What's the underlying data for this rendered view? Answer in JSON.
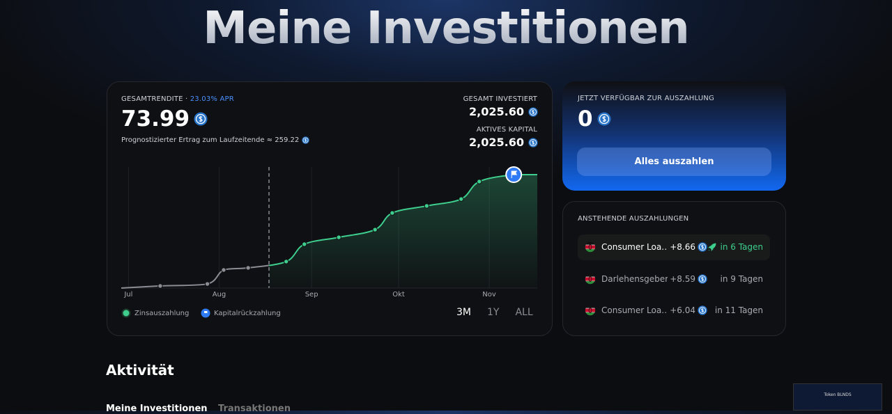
{
  "header": {
    "title": "Meine Investitionen"
  },
  "summary": {
    "label": "GESAMTRENDITE ·",
    "apr": "23.03% APR",
    "total": "73.99",
    "forecast": "Prognostizierter Ertrag zum Laufzeitende ≈ 259.22",
    "invested_label": "GESAMT INVESTIERT",
    "invested": "2,025.60",
    "capital_label": "AKTIVES KAPITAL",
    "capital": "2,025.60"
  },
  "chart_data": {
    "type": "line",
    "x": [
      -0.08,
      0.35,
      0.87,
      1.05,
      1.32,
      1.74,
      1.94,
      2.32,
      2.72,
      2.91,
      3.29,
      3.67,
      3.87,
      4.25,
      4.51
    ],
    "values": [
      0,
      1.4,
      2.7,
      11.8,
      13.2,
      17.3,
      28.6,
      33.1,
      38.1,
      49.0,
      53.6,
      58.1,
      69.5,
      74.0,
      74.0
    ],
    "events": [
      null,
      0,
      0,
      0,
      0,
      0,
      0,
      0,
      0,
      0,
      0,
      0,
      0,
      1,
      null
    ],
    "today": 1.55,
    "xlim": [
      -0.08,
      4.51
    ],
    "ylim": [
      0,
      79
    ],
    "xticks": [
      {
        "value": 0,
        "label": "Jul"
      },
      {
        "value": 1,
        "label": "Aug"
      },
      {
        "value": 2.02,
        "label": "Sep"
      },
      {
        "value": 2.98,
        "label": "Okt"
      },
      {
        "value": 3.98,
        "label": "Nov"
      }
    ],
    "color": "#3ecf8e",
    "past_color": "#8a8d93",
    "grid": true,
    "legend": [
      {
        "name": "Zinsauszahlung",
        "color": "#3ecf8e"
      },
      {
        "name": "Kapitalrückzahlung",
        "color": "#2f7bf5"
      }
    ]
  },
  "ranges": [
    "3M",
    "1Y",
    "ALL"
  ],
  "payout": {
    "label": "JETZT VERFÜGBAR ZUR AUSZAHLUNG",
    "amount": "0",
    "button": "Alles auszahlen"
  },
  "pending": {
    "title": "ANSTEHENDE AUSZAHLUNGEN",
    "rows": [
      {
        "name": "Consumer Loa…",
        "amount": "+8.66",
        "due": "in 6 Tagen"
      },
      {
        "name": "Darlehensgeber",
        "amount": "+8.59",
        "due": "in 9 Tagen"
      },
      {
        "name": "Consumer Loa…",
        "amount": "+6.04",
        "due": "in 11 Tagen"
      }
    ]
  },
  "activity": {
    "title": "Aktivität",
    "tabs": [
      "Meine Investitionen",
      "Transaktionen"
    ]
  },
  "thumbnail": {
    "title": "Token BLNDS"
  }
}
